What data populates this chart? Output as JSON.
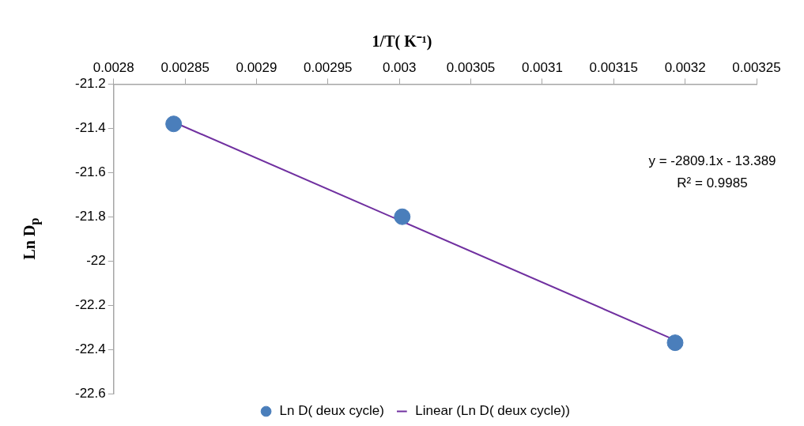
{
  "chart_data": {
    "type": "scatter",
    "xlabel": "1/T( K⁻¹)",
    "ylabel": "Ln D$_{p}$",
    "xlim": [
      0.0028,
      0.00325
    ],
    "xticks": [
      0.0028,
      0.00285,
      0.0029,
      0.00295,
      0.003,
      0.00305,
      0.0031,
      0.00315,
      0.0032,
      0.00325
    ],
    "ylim": [
      -22.6,
      -21.2
    ],
    "yticks": [
      -22.6,
      -22.4,
      -22.2,
      -22,
      -21.8,
      -21.6,
      -21.4,
      -21.2
    ],
    "grid": false,
    "legend": "bottom",
    "marker": "circle",
    "series": [
      {
        "name": "Ln D( deux cycle)",
        "type": "scatter",
        "color": "#4a7ebb",
        "x": [
          0.002842,
          0.003002,
          0.003193
        ],
        "values": [
          -21.38,
          -21.8,
          -22.37
        ]
      },
      {
        "name": "Linear (Ln D( deux cycle))",
        "type": "line",
        "color": "#7030a0",
        "line_style": "solid",
        "marker": "none",
        "x": [
          0.002842,
          0.003193
        ],
        "values": [
          -21.372,
          -22.358
        ]
      }
    ],
    "annotations": [
      "y = -2809.1x - 13.389",
      "R² = 0.9985"
    ]
  }
}
